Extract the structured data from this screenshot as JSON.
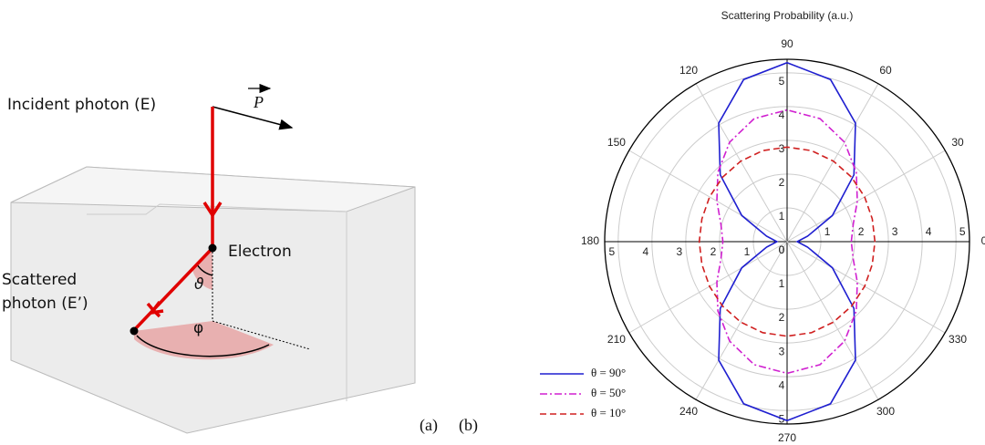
{
  "diagram": {
    "incident": "Incident photon (E)",
    "momentum": "P",
    "electron": "Electron",
    "scattered": [
      "Scattered",
      "photon (E’)"
    ],
    "polar_angle": "ϑ",
    "azimuth": "φ"
  },
  "panel_labels": [
    "(a)",
    "(b)"
  ],
  "chart_data": {
    "type": "polar",
    "title": "Scattering Probability (a.u.)",
    "angles": [
      0,
      15,
      30,
      45,
      60,
      75,
      90,
      105,
      120,
      135,
      150,
      165,
      180,
      195,
      210,
      225,
      240,
      255,
      270,
      285,
      300,
      315,
      330,
      345
    ],
    "series": [
      {
        "name": "θ = 90°",
        "color": "#1f1fd0",
        "dash": "",
        "values": [
          0.3,
          0.63,
          1.55,
          2.8,
          4.05,
          4.97,
          5.3,
          4.97,
          4.05,
          2.8,
          1.55,
          0.63,
          0.3,
          0.63,
          1.55,
          2.8,
          4.05,
          4.97,
          5.3,
          4.97,
          4.05,
          2.8,
          1.55,
          0.63
        ]
      },
      {
        "name": "θ = 50°",
        "color": "#d020d0",
        "dash": "8 3 2 3",
        "values": [
          1.9,
          2.03,
          2.4,
          2.9,
          3.4,
          3.77,
          3.9,
          3.77,
          3.4,
          2.9,
          2.4,
          2.03,
          1.9,
          2.03,
          2.4,
          2.9,
          3.4,
          3.77,
          3.9,
          3.77,
          3.4,
          2.9,
          2.4,
          2.03
        ]
      },
      {
        "name": "θ = 10°",
        "color": "#d02020",
        "dash": "7 4",
        "values": [
          2.6,
          2.61,
          2.65,
          2.7,
          2.75,
          2.79,
          2.8,
          2.79,
          2.75,
          2.7,
          2.65,
          2.61,
          2.6,
          2.61,
          2.65,
          2.7,
          2.75,
          2.79,
          2.8,
          2.79,
          2.75,
          2.7,
          2.65,
          2.61
        ]
      }
    ],
    "rlim": [
      0,
      5.4
    ],
    "rticks": [
      0,
      1,
      2,
      3,
      4,
      5
    ],
    "thetaticks": [
      0,
      30,
      60,
      90,
      120,
      150,
      180,
      210,
      240,
      270,
      300,
      330
    ],
    "grid": true,
    "legend": "lower left"
  }
}
